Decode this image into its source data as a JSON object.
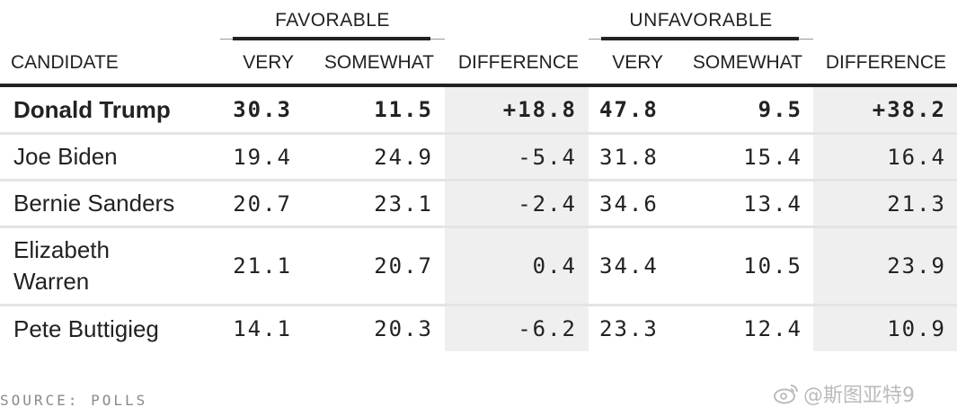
{
  "chart_data": {
    "type": "table",
    "groups": [
      {
        "label": "FAVORABLE"
      },
      {
        "label": "UNFAVORABLE"
      }
    ],
    "columns": [
      "CANDIDATE",
      "VERY",
      "SOMEWHAT",
      "DIFFERENCE",
      "VERY",
      "SOMEWHAT",
      "DIFFERENCE"
    ],
    "rows": [
      {
        "candidate": "Donald Trump",
        "fav_very": "30.3",
        "fav_somewhat": "11.5",
        "fav_diff": "+18.8",
        "unfav_very": "47.8",
        "unfav_somewhat": "9.5",
        "unfav_diff": "+38.2",
        "bold": true
      },
      {
        "candidate": "Joe Biden",
        "fav_very": "19.4",
        "fav_somewhat": "24.9",
        "fav_diff": "-5.4",
        "unfav_very": "31.8",
        "unfav_somewhat": "15.4",
        "unfav_diff": "16.4"
      },
      {
        "candidate": "Bernie Sanders",
        "fav_very": "20.7",
        "fav_somewhat": "23.1",
        "fav_diff": "-2.4",
        "unfav_very": "34.6",
        "unfav_somewhat": "13.4",
        "unfav_diff": "21.3"
      },
      {
        "candidate": "Elizabeth Warren",
        "fav_very": "21.1",
        "fav_somewhat": "20.7",
        "fav_diff": "0.4",
        "unfav_very": "34.4",
        "unfav_somewhat": "10.5",
        "unfav_diff": "23.9"
      },
      {
        "candidate": "Pete Buttigieg",
        "fav_very": "14.1",
        "fav_somewhat": "20.3",
        "fav_diff": "-6.2",
        "unfav_very": "23.3",
        "unfav_somewhat": "12.4",
        "unfav_diff": "10.9"
      }
    ],
    "source": "SOURCE: POLLS"
  },
  "watermark": {
    "text": "@斯图亚特9",
    "icon": "weibo-icon"
  }
}
